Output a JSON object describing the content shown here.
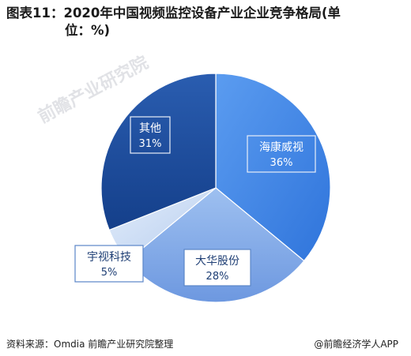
{
  "title_line1": "图表11：2020年中国视频监控设备产业企业竞争格局(单",
  "title_line2": "位：%)",
  "source_text": "资料来源：Omdia 前瞻产业研究院整理",
  "brand_text": "@前瞻经济学人APP",
  "watermark_text": "前瞻产业研究院",
  "chart_data": {
    "type": "pie",
    "title": "图表11：2020年中国视频监控设备产业企业竞争格局(单位：%)",
    "slices": [
      {
        "label": "海康威视",
        "value_label": "36%",
        "value": 36,
        "color": "#3a80e0"
      },
      {
        "label": "大华股份",
        "value_label": "28%",
        "value": 28,
        "color": "#7fa8e6"
      },
      {
        "label": "宇视科技",
        "value_label": "5%",
        "value": 5,
        "color": "#c5d8f3"
      },
      {
        "label": "其他",
        "value_label": "31%",
        "value": 31,
        "color": "#1e4e9c"
      }
    ],
    "start_angle_deg": 0,
    "direction": "clockwise"
  }
}
